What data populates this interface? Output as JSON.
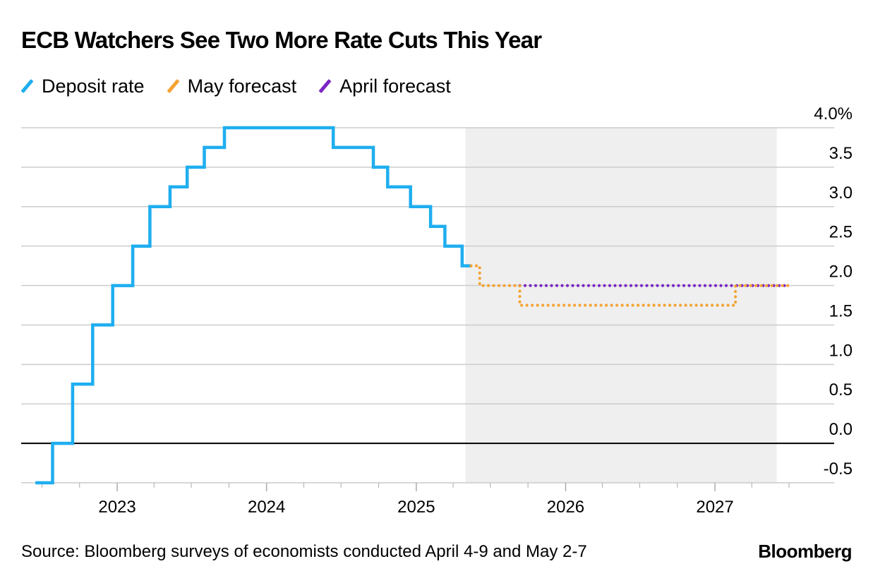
{
  "chart_data": {
    "type": "line",
    "title": "ECB Watchers See Two More Rate Cuts This Year",
    "xlabel": "",
    "ylabel": "",
    "x_ticks": [
      "2023",
      "2024",
      "2025",
      "2026",
      "2027"
    ],
    "y_ticks": [
      "4.0%",
      "3.5",
      "3.0",
      "2.5",
      "2.0",
      "1.5",
      "1.0",
      "0.5",
      "0.0",
      "-0.5"
    ],
    "ylim": [
      -0.5,
      4.0
    ],
    "xlim": [
      "2022-06",
      "2027-07"
    ],
    "shaded_period": [
      "2025-05",
      "2027-06"
    ],
    "grid": true,
    "legend_position": "top-left",
    "colors": {
      "deposit": "#1EAEF0",
      "may": "#F5A233",
      "april": "#7B26C4",
      "shade": "#EFEFEF",
      "grid": "#CCCCCC",
      "zero": "#000000"
    },
    "series": [
      {
        "name": "Deposit rate",
        "style": "solid-step",
        "points": [
          [
            "2022-06-15",
            -0.5
          ],
          [
            "2022-07-27",
            0.0
          ],
          [
            "2022-09-14",
            0.75
          ],
          [
            "2022-11-02",
            1.5
          ],
          [
            "2022-12-21",
            2.0
          ],
          [
            "2023-02-08",
            2.5
          ],
          [
            "2023-03-22",
            3.0
          ],
          [
            "2023-05-10",
            3.25
          ],
          [
            "2023-06-21",
            3.5
          ],
          [
            "2023-08-02",
            3.75
          ],
          [
            "2023-09-20",
            4.0
          ],
          [
            "2024-06-12",
            3.75
          ],
          [
            "2024-09-18",
            3.5
          ],
          [
            "2024-10-23",
            3.25
          ],
          [
            "2024-12-18",
            3.0
          ],
          [
            "2025-02-05",
            2.75
          ],
          [
            "2025-03-12",
            2.5
          ],
          [
            "2025-04-23",
            2.25
          ],
          [
            "2025-05-15",
            2.25
          ]
        ]
      },
      {
        "name": "May forecast",
        "style": "dotted-step",
        "points": [
          [
            "2025-05-15",
            2.25
          ],
          [
            "2025-06-05",
            2.0
          ],
          [
            "2025-09-11",
            1.75
          ],
          [
            "2027-02-20",
            2.0
          ],
          [
            "2027-06-30",
            2.0
          ]
        ]
      },
      {
        "name": "April forecast",
        "style": "dotted-step",
        "points": [
          [
            "2025-09-11",
            2.0
          ],
          [
            "2027-06-30",
            2.0
          ]
        ]
      }
    ]
  },
  "footer": {
    "source": "Source: Bloomberg surveys of economists conducted April 4-9 and May 2-7",
    "brand": "Bloomberg"
  }
}
